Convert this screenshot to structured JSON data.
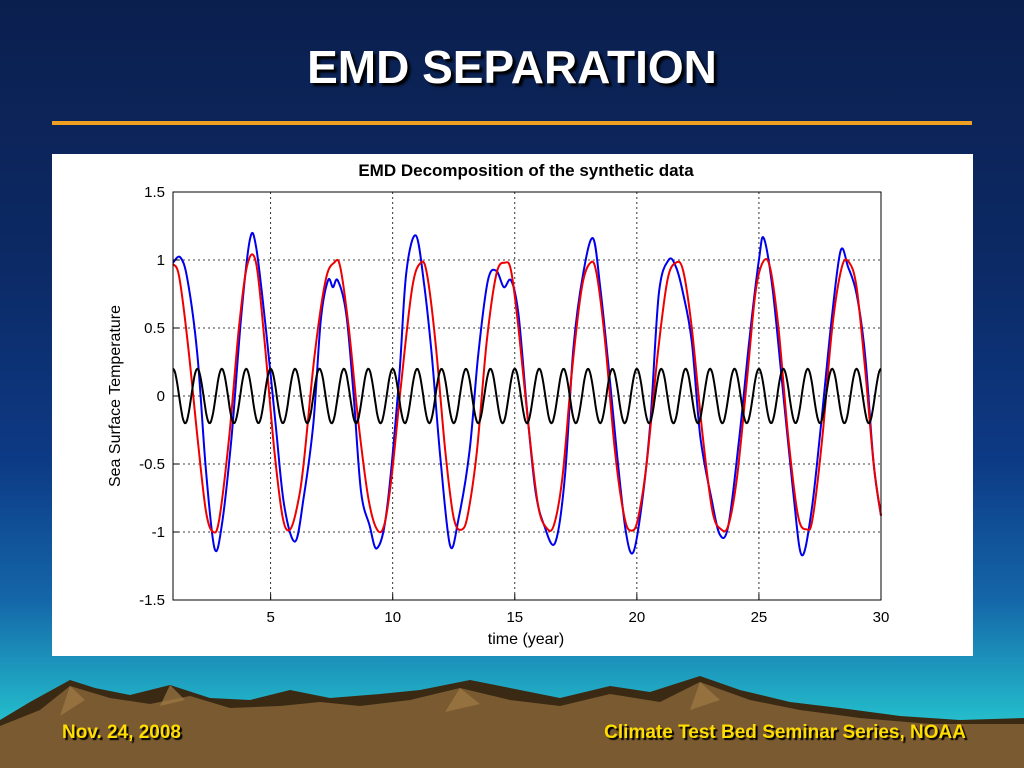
{
  "slide": {
    "title": "EMD SEPARATION",
    "footer_left": "Nov. 24, 2008",
    "footer_right": "Climate Test Bed Seminar Series, NOAA",
    "colors": {
      "rule": "#f0a020",
      "footer_text": "#ffdd00",
      "title_text": "#ffffff"
    }
  },
  "chart_data": {
    "type": "line",
    "title": "EMD Decomposition of the synthetic data",
    "xlabel": "time (year)",
    "ylabel": "Sea Surface Temperature",
    "xlim": [
      1,
      30
    ],
    "ylim": [
      -1.5,
      1.5
    ],
    "xticks": [
      5,
      10,
      15,
      20,
      25,
      30
    ],
    "yticks": [
      -1.5,
      -1,
      -0.5,
      0,
      0.5,
      1,
      1.5
    ],
    "grid": true,
    "series": [
      {
        "color": "#0000ee",
        "x": [
          1,
          1.3,
          1.6,
          2.0,
          2.35,
          2.7,
          3.0,
          3.4,
          3.8,
          4.15,
          4.4,
          4.8,
          5.2,
          5.55,
          6.0,
          6.35,
          6.75,
          7.05,
          7.35,
          7.55,
          7.75,
          8.1,
          8.4,
          8.7,
          9.05,
          9.35,
          9.75,
          10.25,
          10.55,
          10.95,
          11.3,
          11.6,
          11.95,
          12.35,
          12.7,
          13.15,
          13.5,
          13.9,
          14.25,
          14.55,
          14.85,
          15.15,
          15.5,
          15.85,
          16.2,
          16.65,
          17.05,
          17.4,
          17.8,
          18.2,
          18.5,
          18.85,
          19.2,
          19.55,
          19.85,
          20.2,
          20.55,
          20.9,
          21.3,
          21.6,
          21.9,
          22.25,
          22.6,
          23.05,
          23.4,
          23.75,
          24.2,
          24.6,
          25.0,
          25.2,
          25.55,
          25.95,
          26.4,
          26.75,
          27.15,
          27.55,
          28.0,
          28.35,
          28.65,
          29.0,
          29.35,
          29.7,
          30.0
        ],
        "y": [
          0.98,
          1.02,
          0.85,
          0.3,
          -0.55,
          -1.12,
          -0.95,
          -0.3,
          0.6,
          1.15,
          1.1,
          0.5,
          -0.2,
          -0.8,
          -1.07,
          -0.75,
          -0.2,
          0.55,
          0.85,
          0.8,
          0.85,
          0.6,
          0.0,
          -0.7,
          -0.95,
          -1.12,
          -0.85,
          0.1,
          0.9,
          1.18,
          0.8,
          0.3,
          -0.45,
          -1.1,
          -0.9,
          -0.4,
          0.3,
          0.85,
          0.92,
          0.8,
          0.85,
          0.6,
          -0.1,
          -0.7,
          -0.95,
          -1.08,
          -0.6,
          0.35,
          0.9,
          1.16,
          0.8,
          0.2,
          -0.45,
          -1.0,
          -1.15,
          -0.8,
          -0.2,
          0.75,
          1.0,
          0.95,
          0.75,
          0.4,
          -0.3,
          -0.75,
          -1.02,
          -0.95,
          -0.3,
          0.4,
          1.0,
          1.16,
          0.8,
          0.1,
          -0.7,
          -1.17,
          -0.85,
          -0.2,
          0.6,
          1.07,
          0.95,
          0.75,
          0.3,
          -0.5,
          -0.88
        ]
      },
      {
        "color": "#ee0000",
        "x": [
          1,
          1.25,
          1.6,
          2.0,
          2.35,
          2.65,
          2.9,
          3.3,
          3.7,
          4.05,
          4.4,
          4.75,
          5.15,
          5.5,
          5.8,
          6.1,
          6.35,
          6.8,
          7.25,
          7.6,
          7.85,
          8.2,
          8.6,
          9.0,
          9.35,
          9.65,
          9.95,
          10.35,
          10.8,
          11.15,
          11.4,
          11.75,
          12.15,
          12.5,
          12.85,
          13.1,
          13.45,
          13.85,
          14.25,
          14.6,
          14.85,
          15.15,
          15.55,
          15.95,
          16.3,
          16.6,
          16.95,
          17.35,
          17.75,
          18.1,
          18.35,
          18.7,
          19.1,
          19.5,
          19.8,
          20.05,
          20.4,
          20.85,
          21.25,
          21.6,
          21.9,
          22.25,
          22.7,
          23.1,
          23.45,
          23.75,
          24.1,
          24.5,
          24.85,
          25.15,
          25.45,
          25.8,
          26.2,
          26.6,
          26.95,
          27.2,
          27.6,
          28.0,
          28.4,
          28.7,
          29.0,
          29.35,
          29.7,
          30.0
        ],
        "y": [
          0.97,
          0.88,
          0.4,
          -0.3,
          -0.85,
          -1.0,
          -0.9,
          -0.3,
          0.5,
          0.97,
          0.98,
          0.4,
          -0.4,
          -0.9,
          -0.98,
          -0.8,
          -0.5,
          0.3,
          0.85,
          0.98,
          0.95,
          0.5,
          -0.2,
          -0.75,
          -0.98,
          -0.95,
          -0.6,
          0.1,
          0.8,
          0.98,
          0.9,
          0.4,
          -0.4,
          -0.9,
          -0.98,
          -0.85,
          -0.4,
          0.4,
          0.9,
          0.98,
          0.92,
          0.5,
          -0.2,
          -0.8,
          -0.97,
          -0.95,
          -0.6,
          0.2,
          0.8,
          0.98,
          0.9,
          0.4,
          -0.4,
          -0.9,
          -0.99,
          -0.9,
          -0.5,
          0.3,
          0.85,
          0.98,
          0.92,
          0.5,
          -0.3,
          -0.85,
          -0.98,
          -0.95,
          -0.6,
          0.1,
          0.75,
          0.98,
          0.95,
          0.5,
          -0.3,
          -0.88,
          -0.98,
          -0.9,
          -0.3,
          0.5,
          0.95,
          0.98,
          0.8,
          0.2,
          -0.5,
          -0.88
        ]
      },
      {
        "color": "#000000",
        "amplitude": 0.2,
        "period_years": 1.0,
        "phase_years": 0.25
      }
    ]
  }
}
